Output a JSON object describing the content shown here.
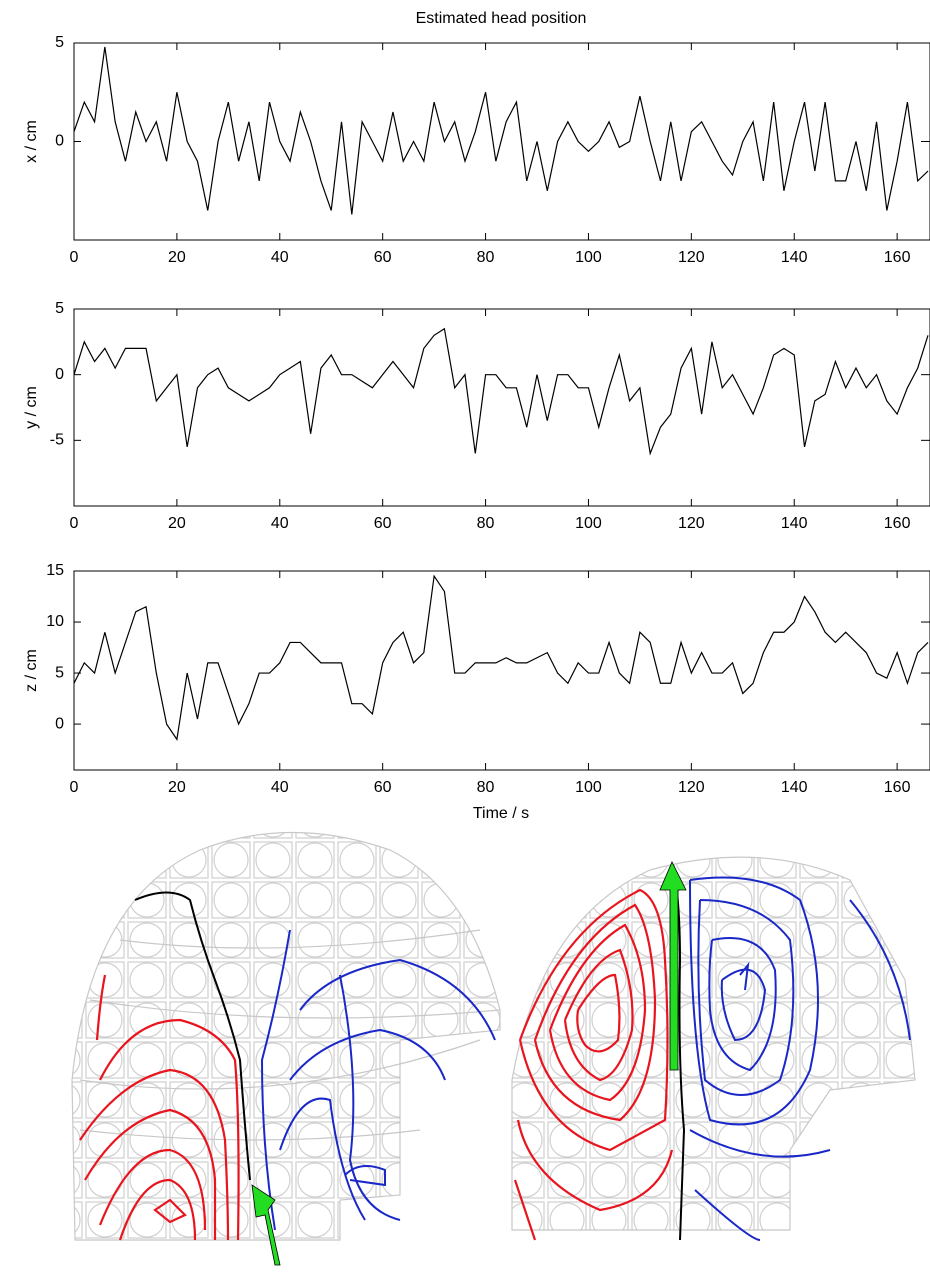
{
  "chart_data": [
    {
      "type": "line",
      "title": "Estimated head position",
      "ylabel": "x / cm",
      "color": "#000000",
      "x": [
        0,
        2,
        4,
        6,
        8,
        10,
        12,
        14,
        16,
        18,
        20,
        22,
        24,
        26,
        28,
        30,
        32,
        34,
        36,
        38,
        40,
        42,
        44,
        46,
        48,
        50,
        52,
        54,
        56,
        58,
        60,
        62,
        64,
        66,
        68,
        70,
        72,
        74,
        76,
        78,
        80,
        82,
        84,
        86,
        88,
        90,
        92,
        94,
        96,
        98,
        100,
        102,
        104,
        106,
        108,
        110,
        112,
        114,
        116,
        118,
        120,
        122,
        124,
        126,
        128,
        130,
        132,
        134,
        136,
        138,
        140,
        142,
        144,
        146,
        148,
        150,
        152,
        154,
        156,
        158,
        160,
        162,
        164,
        166
      ],
      "values": [
        0.5,
        2,
        1,
        4.8,
        1,
        -1,
        1.5,
        0,
        1,
        -1,
        2.5,
        0,
        -1,
        -3.5,
        0,
        2,
        -1,
        1,
        -2,
        2,
        0,
        -1,
        1.5,
        0,
        -2,
        -3.5,
        1,
        -3.7,
        1,
        0,
        -1,
        1.5,
        -1,
        0,
        -1,
        2,
        0,
        1,
        -1,
        0.5,
        2.5,
        -1,
        1,
        2,
        -2,
        0,
        -2.5,
        0,
        1,
        0,
        -0.5,
        0,
        1,
        -0.3,
        0,
        2.3,
        0,
        -2,
        1,
        -2,
        0.5,
        1,
        0,
        -1,
        -1.7,
        0,
        1,
        -2,
        2,
        -2.5,
        0,
        2,
        -1.5,
        2,
        -2,
        -2,
        0,
        -2.5,
        1,
        -3.5,
        -1,
        2,
        -2,
        -1.5
      ],
      "xlim": [
        0,
        166
      ],
      "xticks": [
        0,
        20,
        40,
        60,
        80,
        100,
        120,
        140,
        160
      ],
      "ylim": [
        -5,
        5
      ],
      "yticks": [
        0,
        5
      ]
    },
    {
      "type": "line",
      "ylabel": "y / cm",
      "color": "#000000",
      "x": [
        0,
        2,
        4,
        6,
        8,
        10,
        12,
        14,
        16,
        18,
        20,
        22,
        24,
        26,
        28,
        30,
        32,
        34,
        36,
        38,
        40,
        42,
        44,
        46,
        48,
        50,
        52,
        54,
        56,
        58,
        60,
        62,
        64,
        66,
        68,
        70,
        72,
        74,
        76,
        78,
        80,
        82,
        84,
        86,
        88,
        90,
        92,
        94,
        96,
        98,
        100,
        102,
        104,
        106,
        108,
        110,
        112,
        114,
        116,
        118,
        120,
        122,
        124,
        126,
        128,
        130,
        132,
        134,
        136,
        138,
        140,
        142,
        144,
        146,
        148,
        150,
        152,
        154,
        156,
        158,
        160,
        162,
        164,
        166
      ],
      "values": [
        0,
        2.5,
        1,
        2,
        0.5,
        2,
        2,
        2,
        -2,
        -1,
        0,
        -5.5,
        -1,
        0,
        0.5,
        -1,
        -1.5,
        -2,
        -1.5,
        -1,
        0,
        0.5,
        1,
        -4.5,
        0.5,
        1.5,
        0,
        0,
        -0.5,
        -1,
        0,
        1,
        0,
        -1,
        2,
        3,
        3.5,
        -1,
        0,
        -6,
        0,
        0,
        -1,
        -1,
        -4,
        0,
        -3.5,
        0,
        0,
        -1,
        -1,
        -4,
        -1,
        1.5,
        -2,
        -1,
        -6,
        -4,
        -3,
        0.5,
        2,
        -3,
        2.5,
        -1,
        0,
        -1.5,
        -3,
        -1,
        1.5,
        2,
        1.5,
        -5.5,
        -2,
        -1.5,
        1,
        -1,
        0.5,
        -1,
        0,
        -2,
        -3,
        -1,
        0.5,
        3
      ],
      "xlim": [
        0,
        166
      ],
      "xticks": [
        0,
        20,
        40,
        60,
        80,
        100,
        120,
        140,
        160
      ],
      "ylim": [
        -10,
        5
      ],
      "yticks": [
        -5,
        0,
        5
      ]
    },
    {
      "type": "line",
      "ylabel": "z / cm",
      "xlabel": "Time / s",
      "color": "#000000",
      "x": [
        0,
        2,
        4,
        6,
        8,
        10,
        12,
        14,
        16,
        18,
        20,
        22,
        24,
        26,
        28,
        30,
        32,
        34,
        36,
        38,
        40,
        42,
        44,
        46,
        48,
        50,
        52,
        54,
        56,
        58,
        60,
        62,
        64,
        66,
        68,
        70,
        72,
        74,
        76,
        78,
        80,
        82,
        84,
        86,
        88,
        90,
        92,
        94,
        96,
        98,
        100,
        102,
        104,
        106,
        108,
        110,
        112,
        114,
        116,
        118,
        120,
        122,
        124,
        126,
        128,
        130,
        132,
        134,
        136,
        138,
        140,
        142,
        144,
        146,
        148,
        150,
        152,
        154,
        156,
        158,
        160,
        162,
        164,
        166
      ],
      "values": [
        4,
        6,
        5,
        9,
        5,
        8,
        11,
        11.5,
        5,
        0,
        -1.5,
        5,
        0.5,
        6,
        6,
        3,
        0,
        2,
        5,
        5,
        6,
        8,
        8,
        7,
        6,
        6,
        6,
        2,
        2,
        1,
        6,
        8,
        9,
        6,
        7,
        14.5,
        13,
        5,
        5,
        6,
        6,
        6,
        6.5,
        6,
        6,
        6.5,
        7,
        5,
        4,
        6,
        5,
        5,
        8,
        5,
        4,
        9,
        8,
        4,
        4,
        8,
        5,
        7,
        5,
        5,
        6,
        3,
        4,
        7,
        9,
        9,
        10,
        12.5,
        11,
        9,
        8,
        9,
        8,
        7,
        5,
        4.5,
        7,
        4,
        7,
        8
      ],
      "xlim": [
        0,
        166
      ],
      "xticks": [
        0,
        20,
        40,
        60,
        80,
        100,
        120,
        140,
        160
      ],
      "ylim": [
        -4.5,
        15
      ],
      "yticks": [
        0,
        5,
        10,
        15
      ]
    }
  ]
}
